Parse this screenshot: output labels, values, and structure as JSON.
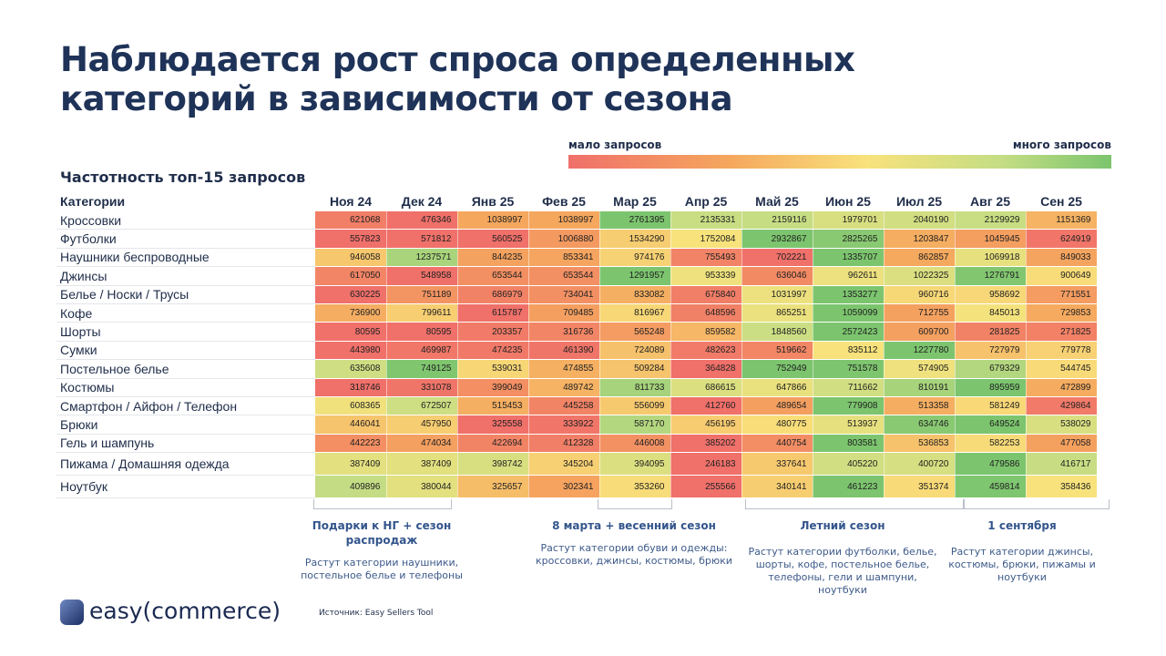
{
  "title_line1": "Наблюдается рост спроса определенных",
  "title_line2": "категорий в зависимости от сезона",
  "legend": {
    "low": "мало запросов",
    "high": "много запросов",
    "colors": [
      "#f0706a",
      "#f5a85e",
      "#f8e27c",
      "#c4dd84",
      "#7cc56e"
    ]
  },
  "chart_data": {
    "type": "heatmap",
    "title": "Частотность топ-15 запросов",
    "row_header": "Категории",
    "columns": [
      "Ноя 24",
      "Дек 24",
      "Янв 25",
      "Фев 25",
      "Мар 25",
      "Апр 25",
      "Май 25",
      "Июн 25",
      "Июл 25",
      "Авг 25",
      "Сен 25"
    ],
    "rows": [
      {
        "name": "Кроссовки",
        "values": [
          621068,
          476346,
          1038997,
          1038997,
          2761395,
          2135331,
          2159116,
          1979701,
          2040190,
          2129929,
          1151369
        ]
      },
      {
        "name": "Футболки",
        "values": [
          557823,
          571812,
          560525,
          1006880,
          1534290,
          1752084,
          2932867,
          2825265,
          1203847,
          1045945,
          624919
        ]
      },
      {
        "name": "Наушники беспроводные",
        "values": [
          946058,
          1237571,
          844235,
          853341,
          974176,
          755493,
          702221,
          1335707,
          862857,
          1069918,
          849033
        ]
      },
      {
        "name": "Джинсы",
        "values": [
          617050,
          548958,
          653544,
          653544,
          1291957,
          953339,
          636046,
          962611,
          1022325,
          1276791,
          900649
        ]
      },
      {
        "name": "Белье / Носки / Трусы",
        "values": [
          630225,
          751189,
          686979,
          734041,
          833082,
          675840,
          1031997,
          1353277,
          960716,
          958692,
          771551
        ]
      },
      {
        "name": "Кофе",
        "values": [
          736900,
          799611,
          615787,
          709485,
          816967,
          648596,
          865251,
          1059099,
          712755,
          845013,
          729853
        ]
      },
      {
        "name": "Шорты",
        "values": [
          80595,
          80595,
          203357,
          316736,
          565248,
          859582,
          1848560,
          2572423,
          609700,
          281825,
          271825
        ]
      },
      {
        "name": "Сумки",
        "values": [
          443980,
          469987,
          474235,
          461390,
          724089,
          482623,
          519662,
          835112,
          1227780,
          727979,
          779778
        ]
      },
      {
        "name": "Постельное белье",
        "values": [
          635608,
          749125,
          539031,
          474855,
          509284,
          364828,
          752949,
          751578,
          574905,
          679329,
          544745
        ]
      },
      {
        "name": "Костюмы",
        "values": [
          318746,
          331078,
          399049,
          489742,
          811733,
          686615,
          647866,
          711662,
          810191,
          895959,
          472899
        ]
      },
      {
        "name": "Смартфон / Айфон / Телефон",
        "values": [
          608365,
          672507,
          515453,
          445258,
          556099,
          412760,
          489654,
          779908,
          513358,
          581249,
          429864
        ]
      },
      {
        "name": "Брюки",
        "values": [
          446041,
          457950,
          325558,
          333922,
          587170,
          456195,
          480775,
          513937,
          634746,
          649524,
          538029
        ]
      },
      {
        "name": "Гель и шампунь",
        "values": [
          442223,
          474034,
          422694,
          412328,
          446008,
          385202,
          440754,
          803581,
          536853,
          582253,
          477058
        ]
      },
      {
        "name": "Пижама / Домашняя одежда",
        "values": [
          387409,
          387409,
          398742,
          345204,
          394095,
          246183,
          337641,
          405220,
          400720,
          479586,
          416717
        ]
      },
      {
        "name": "Ноутбук",
        "values": [
          409896,
          380044,
          325657,
          302341,
          353260,
          255566,
          340141,
          461223,
          351374,
          459814,
          358436
        ]
      }
    ]
  },
  "annotations": [
    {
      "heading": "Подарки к НГ + сезон распродаж",
      "text": "Растут категории наушники, постельное белье и телефоны"
    },
    {
      "heading": "8 марта + весенний сезон",
      "text": "Растут категории обуви и одежды: кроссовки, джинсы, костюмы, брюки"
    },
    {
      "heading": "Летний сезон",
      "text": "Растут категории футболки, белье, шорты, кофе, постельное белье, телефоны, гели и шампуни, ноутбуки"
    },
    {
      "heading": "1 сентября",
      "text": "Растут категории джинсы, костюмы, брюки, пижамы и ноутбуки"
    }
  ],
  "logo_text": "easy(commerce)",
  "source": "Источник: Easy Sellers Tool"
}
